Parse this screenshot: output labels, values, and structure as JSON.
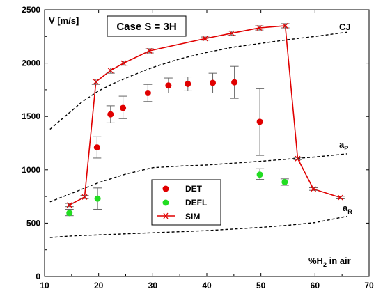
{
  "chart_data": {
    "type": "scatter",
    "title": "",
    "xlabel_prefix": "%H",
    "xlabel_sub": "2",
    "xlabel_suffix": " in air",
    "ylabel": "V [m/s]",
    "case_label": "Case S = 3H",
    "xlim": [
      10,
      70
    ],
    "ylim": [
      0,
      2500
    ],
    "xticks": [
      "10",
      "20",
      "30",
      "40",
      "50",
      "60",
      "70"
    ],
    "yticks": [
      "0",
      "500",
      "1000",
      "1500",
      "2000",
      "2500"
    ],
    "colors": {
      "det": "#e00000",
      "defl": "#22dd22",
      "sim": "#e00000",
      "errorbar": "#666666",
      "reference": "#000000"
    },
    "series": [
      {
        "name": "DET",
        "marker": "circle",
        "x": [
          19.7,
          22.2,
          24.5,
          29.1,
          32.9,
          36.5,
          41.1,
          45.1,
          49.8
        ],
        "y": [
          1210,
          1520,
          1580,
          1720,
          1790,
          1805,
          1815,
          1820,
          1450
        ],
        "err_low": [
          1110,
          1440,
          1480,
          1640,
          1720,
          1740,
          1720,
          1670,
          1135
        ],
        "err_high": [
          1310,
          1600,
          1690,
          1800,
          1860,
          1870,
          1905,
          1970,
          1760
        ]
      },
      {
        "name": "DEFL",
        "marker": "circle",
        "x": [
          14.6,
          19.8,
          49.8,
          54.4
        ],
        "y": [
          595,
          730,
          955,
          885
        ],
        "err_low": [
          570,
          630,
          910,
          855
        ],
        "err_high": [
          630,
          830,
          1010,
          915
        ]
      },
      {
        "name": "SIM",
        "marker": "x",
        "x": [
          14.6,
          17.4,
          19.5,
          22.2,
          24.6,
          29.4,
          39.7,
          44.6,
          49.7,
          54.5,
          56.8,
          59.7,
          64.7
        ],
        "y": [
          670,
          745,
          1825,
          1930,
          2000,
          2115,
          2230,
          2280,
          2330,
          2350,
          1105,
          820,
          740
        ],
        "err_low": [
          655,
          730,
          1800,
          1905,
          1980,
          2095,
          2215,
          2260,
          2310,
          2330,
          1095,
          808,
          728
        ],
        "err_high": [
          685,
          760,
          1850,
          1955,
          2020,
          2135,
          2245,
          2300,
          2350,
          2370,
          1115,
          832,
          752
        ]
      }
    ],
    "reference_lines": [
      {
        "label": "CJ",
        "style": "dashed",
        "x": [
          11,
          14,
          17,
          20,
          23,
          26,
          30,
          35,
          40,
          45,
          50,
          55,
          60,
          66
        ],
        "y": [
          1380,
          1510,
          1640,
          1740,
          1815,
          1880,
          1960,
          2040,
          2100,
          2150,
          2185,
          2220,
          2250,
          2290
        ]
      },
      {
        "label_main": "a",
        "label_sub": "P",
        "style": "dashed",
        "x": [
          11,
          15,
          20,
          25,
          30,
          35,
          40,
          50,
          60,
          66
        ],
        "y": [
          700,
          780,
          880,
          960,
          1020,
          1035,
          1045,
          1080,
          1120,
          1150
        ]
      },
      {
        "label_main": "a",
        "label_sub": "R",
        "style": "dashed",
        "x": [
          11,
          15,
          20,
          30,
          40,
          50,
          55,
          60,
          66
        ],
        "y": [
          365,
          380,
          390,
          410,
          430,
          460,
          480,
          505,
          565
        ]
      }
    ],
    "legend": {
      "placement": "lower-center",
      "entries": [
        "DET",
        "DEFL",
        "SIM"
      ]
    },
    "grid": false
  }
}
